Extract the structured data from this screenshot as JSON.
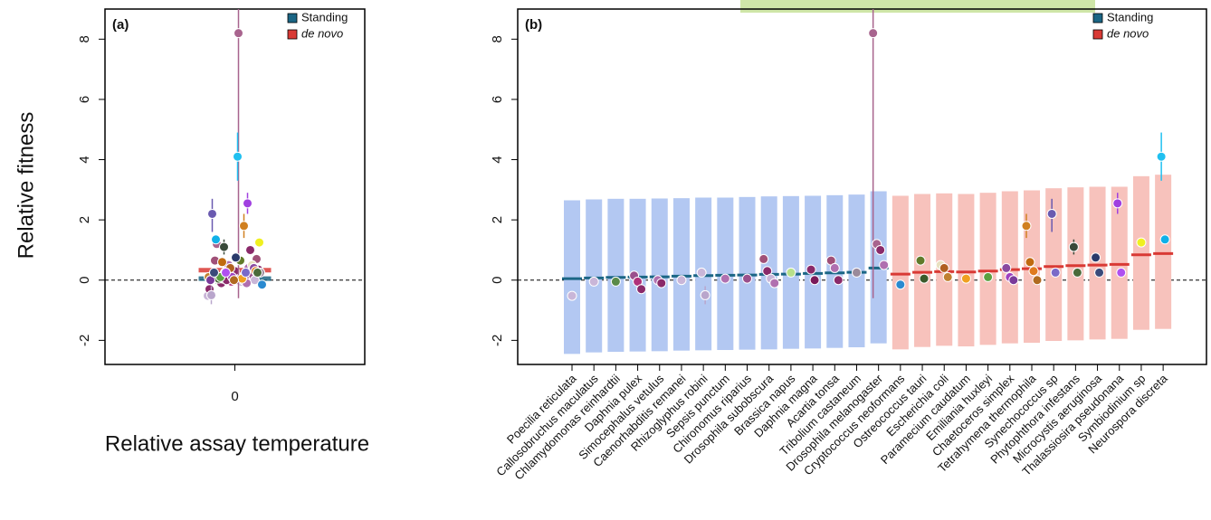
{
  "chart_data": [
    {
      "type": "overview",
      "panel_label": "(a)",
      "x_label": "Relative assay temperature",
      "y_label": "Relative fitness",
      "xlim": [
        -1,
        1
      ],
      "xticks": [
        0
      ],
      "ylim": [
        -2.8,
        9
      ],
      "yticks": [
        -2,
        0,
        2,
        4,
        6,
        8
      ],
      "reference_line": 0,
      "series": [
        {
          "name": "Standing",
          "color": "#1b6685",
          "mean": 0.05
        },
        {
          "name": "de novo",
          "color": "#d93a35",
          "mean": 0.33
        }
      ]
    },
    {
      "type": "interval",
      "panel_label": "(b)",
      "ylim": [
        -2.8,
        9
      ],
      "yticks": [
        -2,
        0,
        2,
        4,
        6,
        8
      ],
      "reference_line": 0,
      "series": [
        {
          "name": "Standing",
          "color": "#1b6685",
          "band_color": "#b3c8f2"
        },
        {
          "name": "de novo",
          "color": "#d93a35",
          "band_color": "#f7c2bc"
        }
      ],
      "categories": [
        "Poecilia reticulata",
        "Callosobruchus maculatus",
        "Chlamydomonas reinhardtii",
        "Daphnia pulex",
        "Simocephalus vetulus",
        "Caenorhabditis remanei",
        "Rhizoglyphus robini",
        "Sepsis punctum",
        "Chironomus riparius",
        "Drosophila subobscura",
        "Brassica napus",
        "Daphnia magna",
        "Acartia tonsa",
        "Tribolium castaneum",
        "Drosophila melanogaster",
        "Cryptococcus neoformans",
        "Ostreococcus tauri",
        "Escherichia coli",
        "Paramecium caudatum",
        "Emiliania huxleyi",
        "Chaetoceros simplex",
        "Tetrahymena thermophila",
        "Synechococcus sp",
        "Phytophthora infestans",
        "Microcystis aeruginosa",
        "Thalassiosira pseudonana",
        "Symbiodinium sp",
        "Neurospora discreta"
      ],
      "species": [
        {
          "group": 0,
          "low": -2.45,
          "high": 2.65,
          "mean": 0.05,
          "points": [
            {
              "y": -0.52,
              "color": "#c9b6d8"
            }
          ]
        },
        {
          "group": 0,
          "low": -2.4,
          "high": 2.68,
          "mean": 0.07,
          "points": [
            {
              "y": -0.05,
              "color": "#c9b6d8"
            }
          ]
        },
        {
          "group": 0,
          "low": -2.38,
          "high": 2.7,
          "mean": 0.09,
          "points": [
            {
              "y": -0.05,
              "color": "#5a8a4a"
            }
          ]
        },
        {
          "group": 0,
          "low": -2.37,
          "high": 2.7,
          "mean": 0.1,
          "points": [
            {
              "y": 0.15,
              "color": "#9a4f8c"
            },
            {
              "y": -0.05,
              "color": "#b0307a"
            },
            {
              "y": -0.3,
              "color": "#8a2a6a"
            }
          ]
        },
        {
          "group": 0,
          "low": -2.36,
          "high": 2.71,
          "mean": 0.11,
          "points": [
            {
              "y": 0.0,
              "color": "#b070b0"
            },
            {
              "y": -0.1,
              "color": "#8a2a6a"
            }
          ]
        },
        {
          "group": 0,
          "low": -2.34,
          "high": 2.72,
          "mean": 0.13,
          "points": [
            {
              "y": 0.0,
              "color": "#c9b6d8"
            }
          ]
        },
        {
          "group": 0,
          "low": -2.33,
          "high": 2.74,
          "mean": 0.15,
          "points": [
            {
              "y": 0.25,
              "color": "#c9b6d8"
            },
            {
              "y": -0.5,
              "color": "#b9a6cc",
              "lo": -0.8,
              "hi": -0.2
            }
          ]
        },
        {
          "group": 0,
          "low": -2.32,
          "high": 2.74,
          "mean": 0.16,
          "points": [
            {
              "y": 0.05,
              "color": "#b070b0"
            }
          ]
        },
        {
          "group": 0,
          "low": -2.31,
          "high": 2.76,
          "mean": 0.17,
          "points": [
            {
              "y": 0.05,
              "color": "#9a4f8c"
            }
          ]
        },
        {
          "group": 0,
          "low": -2.3,
          "high": 2.78,
          "mean": 0.19,
          "points": [
            {
              "y": 0.7,
              "color": "#a05078"
            },
            {
              "y": 0.3,
              "color": "#8a2a6a"
            },
            {
              "y": 0.05,
              "color": "#c9b6d8"
            },
            {
              "y": -0.1,
              "color": "#b070b0"
            }
          ]
        },
        {
          "group": 0,
          "low": -2.28,
          "high": 2.79,
          "mean": 0.2,
          "points": [
            {
              "y": 0.25,
              "color": "#b8e08a"
            }
          ]
        },
        {
          "group": 0,
          "low": -2.27,
          "high": 2.8,
          "mean": 0.22,
          "points": [
            {
              "y": 0.35,
              "color": "#8a2a6a"
            },
            {
              "y": 0.0,
              "color": "#7a1a5a"
            }
          ]
        },
        {
          "group": 0,
          "low": -2.25,
          "high": 2.82,
          "mean": 0.24,
          "points": [
            {
              "y": 0.65,
              "color": "#a05078"
            },
            {
              "y": 0.4,
              "color": "#b070b0"
            },
            {
              "y": 0.0,
              "color": "#8a2a6a"
            }
          ]
        },
        {
          "group": 0,
          "low": -2.23,
          "high": 2.84,
          "mean": 0.26,
          "points": [
            {
              "y": 0.25,
              "color": "#9a8a9a"
            }
          ]
        },
        {
          "group": 0,
          "low": -2.1,
          "high": 2.95,
          "mean": 0.4,
          "points": [
            {
              "y": 8.2,
              "color": "#a8648e",
              "lo": -0.6,
              "hi": 14
            },
            {
              "y": 1.2,
              "color": "#a8648e"
            },
            {
              "y": 1.0,
              "color": "#8a2a6a"
            },
            {
              "y": 0.5,
              "color": "#b070b0"
            }
          ]
        },
        {
          "group": 1,
          "low": -2.3,
          "high": 2.8,
          "mean": 0.2,
          "points": [
            {
              "y": -0.15,
              "color": "#2a8ad0"
            }
          ]
        },
        {
          "group": 1,
          "low": -2.22,
          "high": 2.86,
          "mean": 0.26,
          "points": [
            {
              "y": 0.65,
              "color": "#607a2a"
            },
            {
              "y": 0.05,
              "color": "#3a5a2a"
            }
          ]
        },
        {
          "group": 1,
          "low": -2.18,
          "high": 2.88,
          "mean": 0.28,
          "points": [
            {
              "y": 0.5,
              "color": "#e8e0c0"
            },
            {
              "y": 0.4,
              "color": "#b06020"
            },
            {
              "y": 0.1,
              "color": "#c08030"
            }
          ]
        },
        {
          "group": 1,
          "low": -2.2,
          "high": 2.86,
          "mean": 0.27,
          "points": [
            {
              "y": 0.05,
              "color": "#f0a020"
            }
          ]
        },
        {
          "group": 1,
          "low": -2.15,
          "high": 2.9,
          "mean": 0.3,
          "points": [
            {
              "y": 0.1,
              "color": "#5aa040"
            }
          ]
        },
        {
          "group": 1,
          "low": -2.1,
          "high": 2.95,
          "mean": 0.35,
          "points": [
            {
              "y": 0.4,
              "color": "#8a4aa0"
            },
            {
              "y": 0.1,
              "color": "#a040c0"
            },
            {
              "y": 0.0,
              "color": "#7a3a9a"
            }
          ]
        },
        {
          "group": 1,
          "low": -2.08,
          "high": 2.98,
          "mean": 0.38,
          "points": [
            {
              "y": 1.8,
              "color": "#d08020",
              "lo": 1.4,
              "hi": 2.2
            },
            {
              "y": 0.6,
              "color": "#c06a10"
            },
            {
              "y": 0.3,
              "color": "#e07a20"
            },
            {
              "y": 0.0,
              "color": "#b06a20"
            }
          ]
        },
        {
          "group": 1,
          "low": -2.02,
          "high": 3.05,
          "mean": 0.45,
          "points": [
            {
              "y": 2.2,
              "color": "#6a5ab0",
              "lo": 1.6,
              "hi": 2.7
            },
            {
              "y": 0.25,
              "color": "#7a6ac8"
            }
          ]
        },
        {
          "group": 1,
          "low": -2.0,
          "high": 3.08,
          "mean": 0.48,
          "points": [
            {
              "y": 1.1,
              "color": "#3a4a3a",
              "lo": 0.85,
              "hi": 1.35
            },
            {
              "y": 0.25,
              "color": "#4a6a3a"
            }
          ]
        },
        {
          "group": 1,
          "low": -1.97,
          "high": 3.1,
          "mean": 0.5,
          "points": [
            {
              "y": 0.75,
              "color": "#2a3a6a"
            },
            {
              "y": 0.25,
              "color": "#3a4a7a"
            }
          ]
        },
        {
          "group": 1,
          "low": -1.95,
          "high": 3.1,
          "mean": 0.52,
          "points": [
            {
              "y": 2.55,
              "color": "#a040e0",
              "lo": 2.2,
              "hi": 2.9
            },
            {
              "y": 0.25,
              "color": "#b050f0"
            }
          ]
        },
        {
          "group": 1,
          "low": -1.65,
          "high": 3.45,
          "mean": 0.84,
          "points": [
            {
              "y": 1.25,
              "color": "#f0f020"
            }
          ]
        },
        {
          "group": 1,
          "low": -1.62,
          "high": 3.5,
          "mean": 0.88,
          "points": [
            {
              "y": 4.1,
              "color": "#20c0f0",
              "lo": 3.3,
              "hi": 4.9
            },
            {
              "y": 1.35,
              "color": "#10b0e8"
            }
          ]
        }
      ]
    }
  ]
}
